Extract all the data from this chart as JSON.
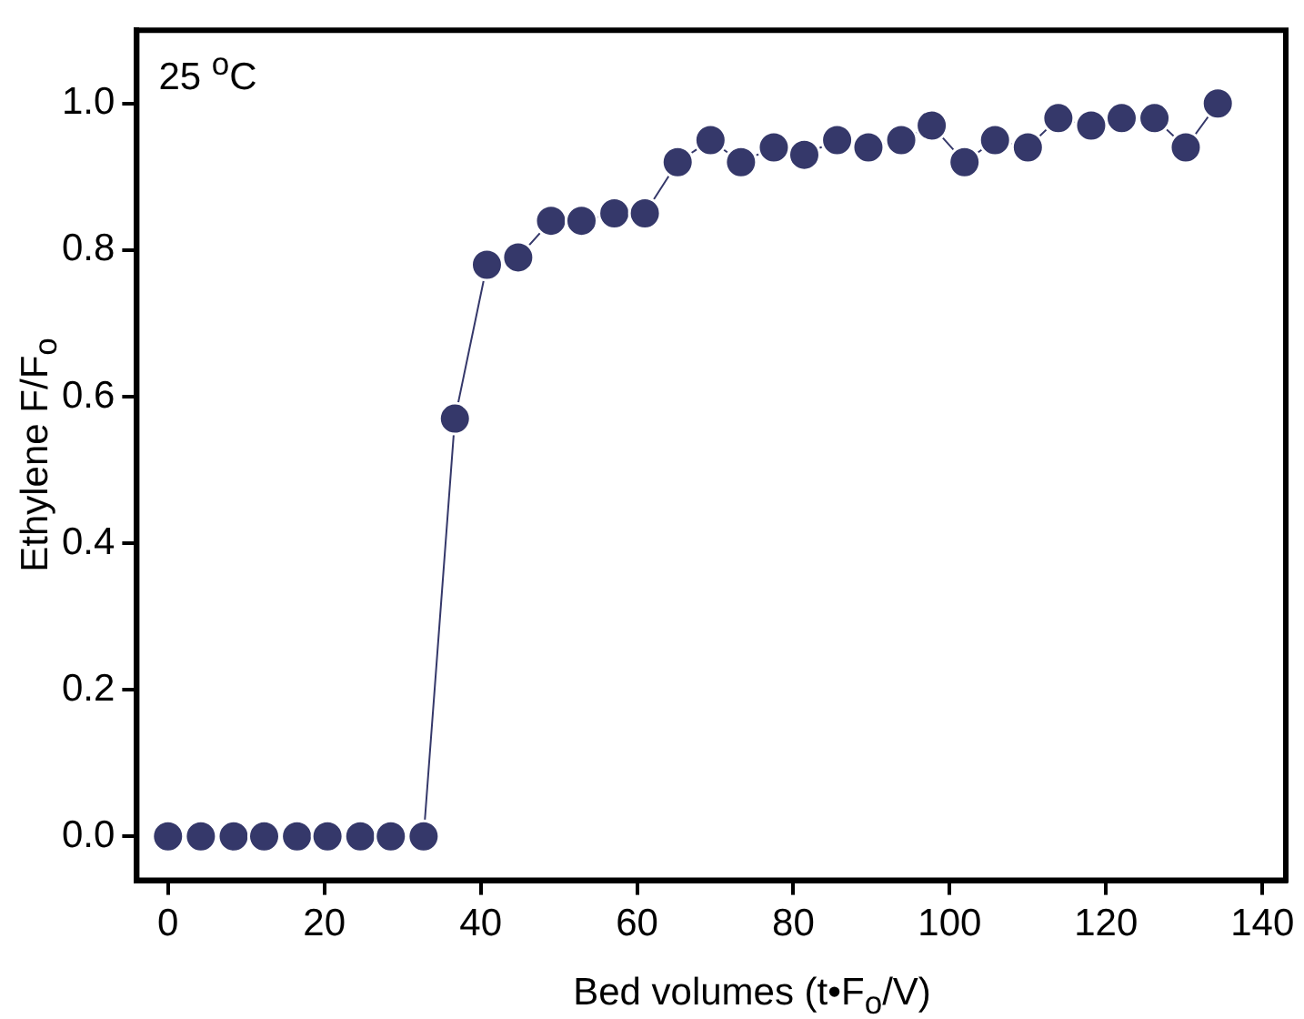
{
  "chart_data": {
    "type": "line",
    "xlabel": "Bed volumes (t•F$_{o}$/V)",
    "ylabel": "Ethylene F/F$_{o}$",
    "annotations": [
      "25 $^{o}$C"
    ],
    "x": [
      0,
      4.2,
      8.4,
      12.3,
      16.5,
      20.4,
      24.6,
      28.5,
      32.7,
      36.7,
      40.8,
      44.8,
      49,
      52.9,
      57.1,
      61,
      65.2,
      69.4,
      73.3,
      77.5,
      81.4,
      85.6,
      89.6,
      93.8,
      97.7,
      101.9,
      105.8,
      110,
      113.9,
      118.1,
      122,
      126.2,
      130.2,
      134.3
    ],
    "series": [
      {
        "color": "#35386a",
        "values": [
          0,
          0,
          0,
          0,
          0,
          0,
          0,
          0,
          0,
          0.57,
          0.78,
          0.79,
          0.84,
          0.84,
          0.85,
          0.85,
          0.92,
          0.95,
          0.92,
          0.94,
          0.93,
          0.95,
          0.94,
          0.95,
          0.97,
          0.92,
          0.95,
          0.94,
          0.98,
          0.97,
          0.98,
          0.98,
          0.94,
          1.0
        ]
      }
    ],
    "xlim": [
      -4,
      143
    ],
    "ylim": [
      -0.06,
      1.1
    ],
    "xticks": [
      0,
      20,
      40,
      60,
      80,
      100,
      120,
      140
    ],
    "yticks": [
      {
        "value": 0,
        "label": "0.0"
      },
      {
        "value": 0.2,
        "label": "0.2"
      },
      {
        "value": 0.4,
        "label": "0.4"
      },
      {
        "value": 0.6,
        "label": "0.6"
      },
      {
        "value": 0.8,
        "label": "0.8"
      },
      {
        "value": 1,
        "label": "1.0"
      }
    ],
    "grid": false,
    "legend": false,
    "marker": "circle",
    "line_style": "solid"
  }
}
